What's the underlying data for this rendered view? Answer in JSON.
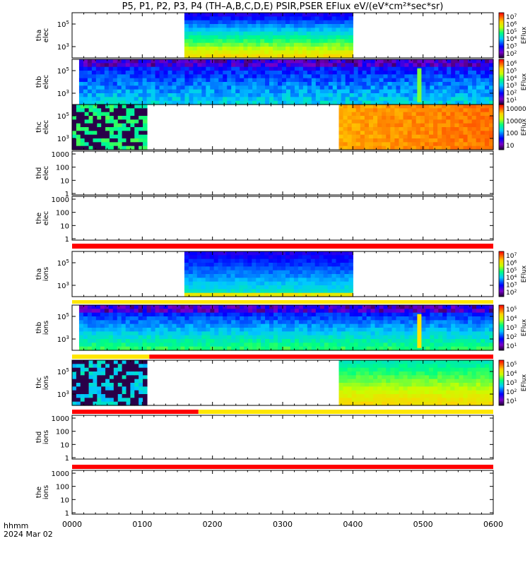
{
  "title": "P5, P1, P2, P3, P4 (TH–A,B,C,D,E) PSIR,PSER EFlux eV/(eV*cm²*sec*sr)",
  "footer": {
    "label_line1": "hhmm",
    "label_line2": "2024 Mar 02"
  },
  "chart_data": {
    "type": "heatmap",
    "x_axis": {
      "range": [
        "0000",
        "0600"
      ],
      "ticks": [
        "0000",
        "0100",
        "0200",
        "0300",
        "0400",
        "0500",
        "0600"
      ]
    },
    "panels": [
      {
        "id": "tha-elec",
        "label": [
          "tha",
          "elec"
        ],
        "yticks": [
          "10^5",
          "10^3"
        ],
        "colorbar": {
          "label": "EFlux",
          "ticks": [
            "10^7",
            "10^6",
            "10^5",
            "10^4",
            "10^3",
            "10^2"
          ]
        },
        "spans": [
          {
            "x0": "0136",
            "x1": "0400",
            "kind": "tha"
          }
        ]
      },
      {
        "id": "thb-elec",
        "label": [
          "thb",
          "elec"
        ],
        "yticks": [
          "10^5",
          "10^3"
        ],
        "colorbar": {
          "label": "EFlux",
          "ticks": [
            "10^6",
            "10^5",
            "10^4",
            "10^3",
            "10^2",
            "10^1"
          ]
        },
        "spans": [
          {
            "x0": "0006",
            "x1": "0600",
            "kind": "thb"
          }
        ]
      },
      {
        "id": "thc-elec",
        "label": [
          "thc",
          "elec"
        ],
        "yticks": [
          "10^5",
          "10^3"
        ],
        "colorbar": {
          "label": "EFlux",
          "ticks": [
            "10000",
            "1000",
            "100",
            "10"
          ]
        },
        "spans": [
          {
            "x0": "0000",
            "x1": "0104",
            "kind": "thcL"
          },
          {
            "x0": "0348",
            "x1": "0600",
            "kind": "thcR"
          }
        ]
      },
      {
        "id": "thd-elec",
        "label": [
          "thd",
          "elec"
        ],
        "yticks": [
          "1000",
          "100",
          "10",
          "1"
        ],
        "colorbar": null,
        "spans": []
      },
      {
        "id": "the-elec",
        "label": [
          "the",
          "elec"
        ],
        "yticks": [
          "1000",
          "100",
          "10",
          "1"
        ],
        "colorbar": null,
        "spans": []
      },
      {
        "id": "tha-ions",
        "label": [
          "tha",
          "ions"
        ],
        "yticks": [
          "10^5",
          "10^3"
        ],
        "colorbar": {
          "label": "EFlux",
          "ticks": [
            "10^7",
            "10^6",
            "10^5",
            "10^4",
            "10^3",
            "10^2"
          ]
        },
        "spans": [
          {
            "x0": "0136",
            "x1": "0400",
            "kind": "thaI"
          }
        ]
      },
      {
        "id": "thb-ions",
        "label": [
          "thb",
          "ions"
        ],
        "yticks": [
          "10^5",
          "10^3"
        ],
        "colorbar": {
          "label": "EFlux",
          "ticks": [
            "10^5",
            "10^4",
            "10^3",
            "10^2",
            "10^1"
          ]
        },
        "spans": [
          {
            "x0": "0006",
            "x1": "0600",
            "kind": "thbI"
          }
        ]
      },
      {
        "id": "thc-ions",
        "label": [
          "thc",
          "ions"
        ],
        "yticks": [
          "10^5",
          "10^3"
        ],
        "colorbar": {
          "label": "EFlux",
          "ticks": [
            "10^5",
            "10^4",
            "10^3",
            "10^2",
            "10^1"
          ]
        },
        "spans": [
          {
            "x0": "0000",
            "x1": "0104",
            "kind": "thcIL"
          },
          {
            "x0": "0348",
            "x1": "0600",
            "kind": "thcIR"
          }
        ]
      },
      {
        "id": "thd-ions",
        "label": [
          "thd",
          "ions"
        ],
        "yticks": [
          "1000",
          "100",
          "10",
          "1"
        ],
        "colorbar": null,
        "spans": []
      },
      {
        "id": "the-ions",
        "label": [
          "the",
          "ions"
        ],
        "yticks": [
          "1000",
          "100",
          "10",
          "1"
        ],
        "colorbar": null,
        "spans": []
      }
    ],
    "status_bars": [
      {
        "after": "the-elec",
        "segments": [
          {
            "x0": "0000",
            "x1": "0600",
            "color": "#ff0000"
          }
        ]
      },
      {
        "after": "tha-ions",
        "segments": [
          {
            "x0": "0000",
            "x1": "0600",
            "color": "#ffe600"
          }
        ]
      },
      {
        "after": "thb-ions",
        "segments": [
          {
            "x0": "0000",
            "x1": "0106",
            "color": "#ffe600"
          },
          {
            "x0": "0106",
            "x1": "0600",
            "color": "#ff0000"
          }
        ]
      },
      {
        "after": "thc-ions",
        "segments": [
          {
            "x0": "0000",
            "x1": "0148",
            "color": "#ff0000"
          },
          {
            "x0": "0148",
            "x1": "0600",
            "color": "#ffe600"
          }
        ]
      },
      {
        "after": "thd-ions",
        "segments": [
          {
            "x0": "0000",
            "x1": "0600",
            "color": "#ff0000"
          }
        ]
      }
    ]
  }
}
